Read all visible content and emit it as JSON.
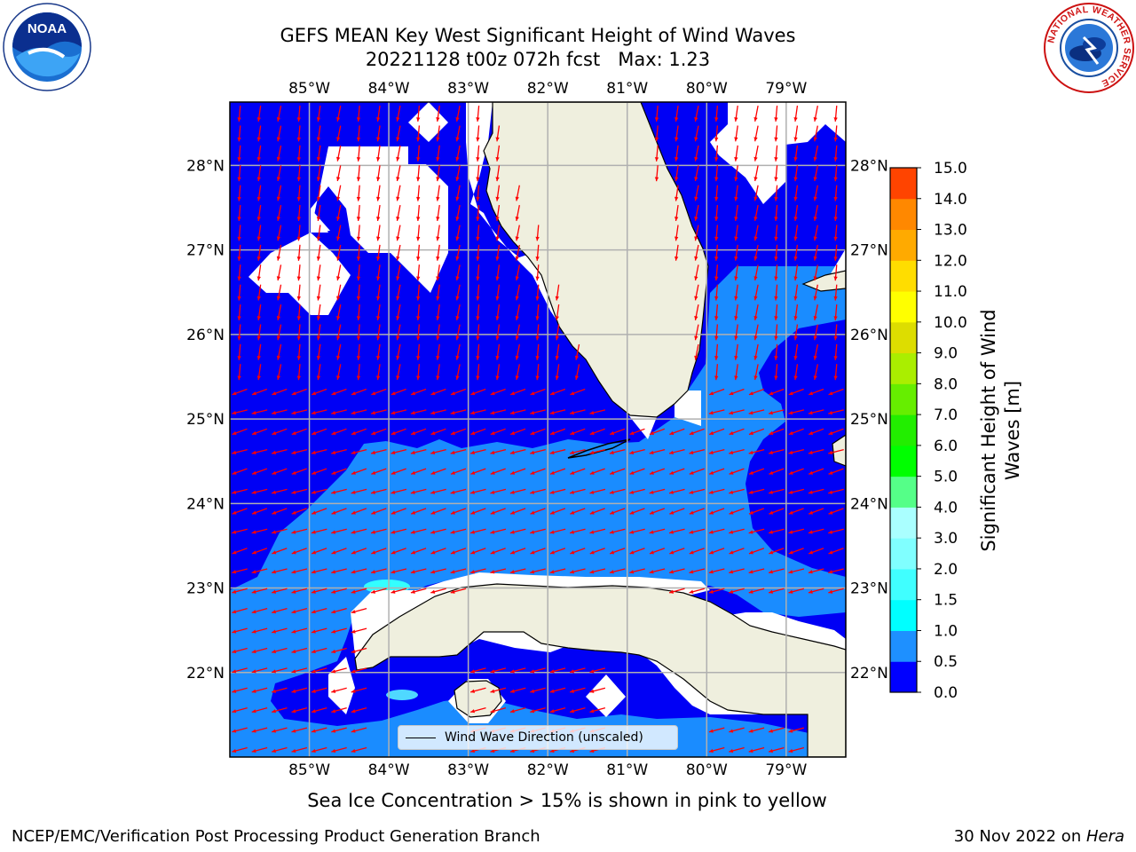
{
  "title": {
    "line1": "GEFS MEAN Key West Significant Height of Wind Waves",
    "line2": "20221128 t00z 072h fcst   Max: 1.23"
  },
  "map": {
    "lon_range": [
      -86.0,
      -78.25
    ],
    "lat_range": [
      21.0,
      28.75
    ],
    "lon_ticks": [
      -85,
      -84,
      -83,
      -82,
      -81,
      -80,
      -79
    ],
    "lat_ticks": [
      22,
      23,
      24,
      25,
      26,
      27,
      28
    ],
    "lon_tick_labels": [
      "85°W",
      "84°W",
      "83°W",
      "82°W",
      "81°W",
      "80°W",
      "79°W"
    ],
    "lat_tick_labels": [
      "22°N",
      "23°N",
      "24°N",
      "25°N",
      "26°N",
      "27°N",
      "28°N"
    ],
    "colors": {
      "water_0_0.5": "#0000f5",
      "water_0.5_1.0": "#1a8cff",
      "water_1.0_1.5": "#33ffff",
      "land": "#efefde",
      "grid": "#b0b0b0",
      "arrow": "#ff0000",
      "missing": "#ffffff"
    },
    "legend": "Wind Wave Direction (unscaled)"
  },
  "colorbar": {
    "title": "Significant Height of Wind Waves [m]",
    "ticks": [
      "0.0",
      "0.5",
      "1.0",
      "1.5",
      "2.0",
      "3.0",
      "4.0",
      "5.0",
      "6.0",
      "7.0",
      "8.0",
      "9.0",
      "10.0",
      "11.0",
      "12.0",
      "13.0",
      "14.0",
      "15.0"
    ],
    "colors": [
      "#0000ff",
      "#1e90ff",
      "#00ffff",
      "#40ffff",
      "#80ffff",
      "#aaffff",
      "#55ff88",
      "#00ff00",
      "#22ee00",
      "#66ee00",
      "#aaee00",
      "#dddd00",
      "#ffff00",
      "#ffdd00",
      "#ffaa00",
      "#ff8800",
      "#ff4400",
      "#ff0000"
    ]
  },
  "footer": {
    "ice_note": "Sea Ice Concentration > 15% is shown in pink to yellow",
    "branch": "NCEP/EMC/Verification Post Processing Product Generation Branch",
    "date": "30 Nov 2022 on ",
    "host": "Hera"
  },
  "logos": {
    "noaa": "NOAA",
    "nws_ring": "NATIONAL WEATHER SERVICE"
  }
}
